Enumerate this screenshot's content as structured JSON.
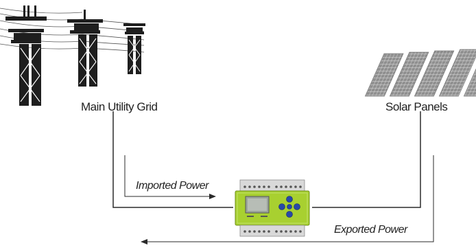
{
  "labels": {
    "grid": "Main Utility  Grid",
    "solar": "Solar Panels",
    "imported": "Imported Power",
    "exported": "Exported Power"
  },
  "colors": {
    "line": "#2a2a2a",
    "tower": "#1e1e1e",
    "panel": "#8e8e8e",
    "meter_body": "#a8d030",
    "meter_screen": "#9aa39b",
    "meter_buttons": "#2848a8"
  },
  "icons": [
    "power-tower-icon",
    "solar-panel-icon",
    "energy-meter-icon"
  ]
}
